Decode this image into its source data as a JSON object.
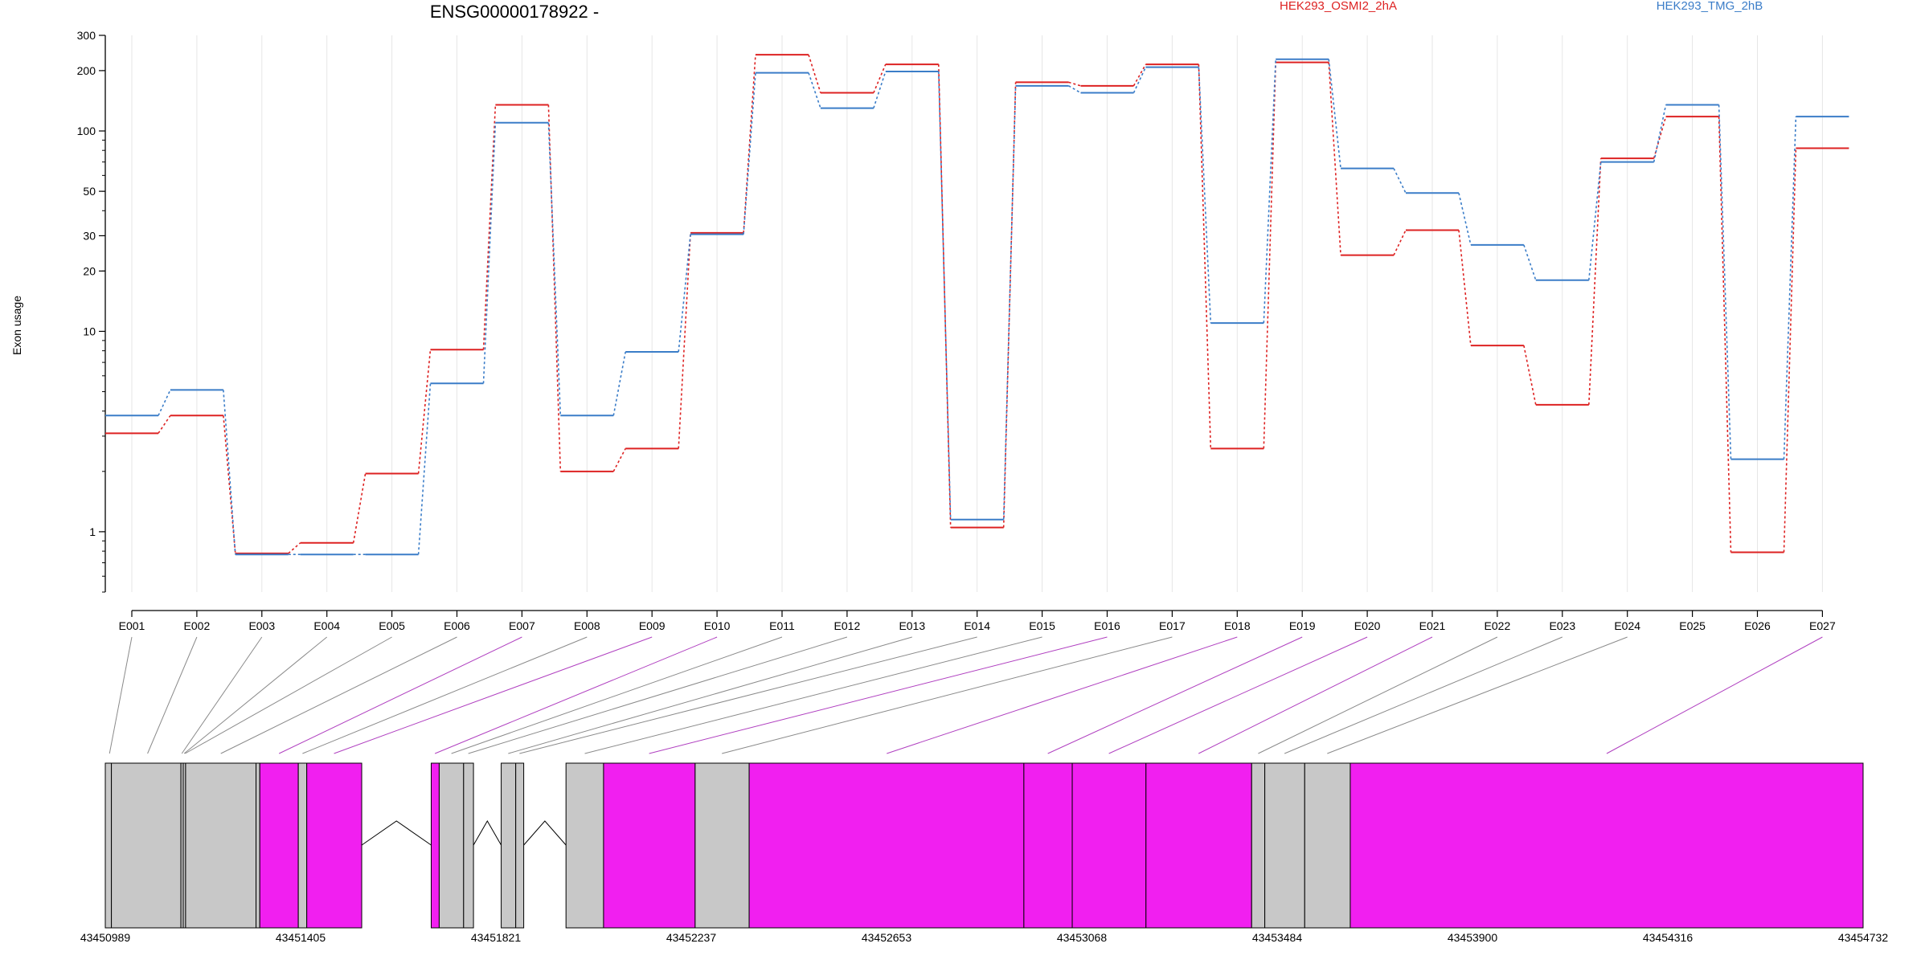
{
  "chart_data": {
    "type": "line",
    "title": "ENSG00000178922 -",
    "ylabel": "Exon usage",
    "xlabel": "",
    "yscale": "log",
    "ylim": [
      0.5,
      300
    ],
    "ytick_labels": [
      "300",
      "200",
      "100",
      "50",
      "30",
      "20",
      "10",
      "1"
    ],
    "ytick_values": [
      300,
      200,
      100,
      50,
      30,
      20,
      10,
      1
    ],
    "grid": "vertical",
    "legend_position": "top-right",
    "categories": [
      "E001",
      "E002",
      "E003",
      "E004",
      "E005",
      "E006",
      "E007",
      "E008",
      "E009",
      "E010",
      "E011",
      "E012",
      "E013",
      "E014",
      "E015",
      "E016",
      "E017",
      "E018",
      "E019",
      "E020",
      "E021",
      "E022",
      "E023",
      "E024",
      "E025",
      "E026",
      "E027"
    ],
    "series": [
      {
        "name": "HEK293_OSMI2_2hA",
        "color": "#dd2222",
        "values": [
          3.1,
          3.8,
          0.78,
          0.88,
          1.95,
          8.1,
          135,
          2.0,
          2.6,
          31,
          240,
          155,
          215,
          1.05,
          175,
          168,
          215,
          2.6,
          220,
          24,
          32,
          8.5,
          4.3,
          73,
          118,
          0.79,
          82
        ]
      },
      {
        "name": "HEK293_TMG_2hB",
        "color": "#3b7dc8",
        "values": [
          3.8,
          5.1,
          0.77,
          0.77,
          0.77,
          5.5,
          110,
          3.8,
          7.9,
          30.5,
          195,
          130,
          198,
          1.15,
          168,
          155,
          208,
          11,
          228,
          65,
          49,
          27,
          18,
          70,
          135,
          2.3,
          118
        ]
      }
    ],
    "gene_model": {
      "coordinate_labels": [
        "43450989",
        "43451405",
        "43451821",
        "43452237",
        "43452653",
        "43453068",
        "43453484",
        "43453900",
        "43454316",
        "43454732"
      ],
      "range": [
        43450989,
        43454732
      ],
      "exon_fill_colors": {
        "default": "#c8c8c8",
        "highlighted": "#f11ff0"
      },
      "segments": [
        {
          "start": 43450989,
          "end": 43451002,
          "highlighted": false
        },
        {
          "start": 43451002,
          "end": 43451150,
          "highlighted": false
        },
        {
          "start": 43451150,
          "end": 43451155,
          "highlighted": false
        },
        {
          "start": 43451155,
          "end": 43451160,
          "highlighted": false
        },
        {
          "start": 43451160,
          "end": 43451310,
          "highlighted": false
        },
        {
          "start": 43451310,
          "end": 43451318,
          "highlighted": false
        },
        {
          "start": 43451318,
          "end": 43451400,
          "highlighted": true
        },
        {
          "start": 43451400,
          "end": 43451418,
          "highlighted": false
        },
        {
          "start": 43451418,
          "end": 43451535,
          "highlighted": true
        },
        {
          "start": 43451683,
          "end": 43451700,
          "highlighted": true
        },
        {
          "start": 43451700,
          "end": 43451752,
          "highlighted": false
        },
        {
          "start": 43451752,
          "end": 43451773,
          "highlighted": false
        },
        {
          "start": 43451832,
          "end": 43451863,
          "highlighted": false
        },
        {
          "start": 43451863,
          "end": 43451880,
          "highlighted": false
        },
        {
          "start": 43451970,
          "end": 43452050,
          "highlighted": false
        },
        {
          "start": 43452050,
          "end": 43452245,
          "highlighted": true
        },
        {
          "start": 43452245,
          "end": 43452360,
          "highlighted": false
        },
        {
          "start": 43452360,
          "end": 43452945,
          "highlighted": true
        },
        {
          "start": 43452945,
          "end": 43453048,
          "highlighted": true
        },
        {
          "start": 43453048,
          "end": 43453205,
          "highlighted": true
        },
        {
          "start": 43453205,
          "end": 43453430,
          "highlighted": true
        },
        {
          "start": 43453430,
          "end": 43453458,
          "highlighted": false
        },
        {
          "start": 43453458,
          "end": 43453543,
          "highlighted": false
        },
        {
          "start": 43453543,
          "end": 43453640,
          "highlighted": false
        },
        {
          "start": 43453640,
          "end": 43454732,
          "highlighted": true
        }
      ],
      "introns": [
        {
          "start": 43451535,
          "end": 43451683
        },
        {
          "start": 43451773,
          "end": 43451832
        },
        {
          "start": 43451880,
          "end": 43451970
        }
      ],
      "exon_links": [
        {
          "exon": "E001",
          "position": 43450998,
          "highlighted": false
        },
        {
          "exon": "E002",
          "position": 43451079,
          "highlighted": false
        },
        {
          "exon": "E003",
          "position": 43451152,
          "highlighted": false
        },
        {
          "exon": "E004",
          "position": 43451157,
          "highlighted": false
        },
        {
          "exon": "E005",
          "position": 43451159,
          "highlighted": false
        },
        {
          "exon": "E006",
          "position": 43451235,
          "highlighted": false
        },
        {
          "exon": "E007",
          "position": 43451359,
          "highlighted": true
        },
        {
          "exon": "E008",
          "position": 43451409,
          "highlighted": false
        },
        {
          "exon": "E009",
          "position": 43451476,
          "highlighted": true
        },
        {
          "exon": "E010",
          "position": 43451691,
          "highlighted": true
        },
        {
          "exon": "E011",
          "position": 43451726,
          "highlighted": false
        },
        {
          "exon": "E012",
          "position": 43451762,
          "highlighted": false
        },
        {
          "exon": "E013",
          "position": 43451847,
          "highlighted": false
        },
        {
          "exon": "E014",
          "position": 43451871,
          "highlighted": false
        },
        {
          "exon": "E015",
          "position": 43452010,
          "highlighted": false
        },
        {
          "exon": "E016",
          "position": 43452147,
          "highlighted": true
        },
        {
          "exon": "E017",
          "position": 43452302,
          "highlighted": false
        },
        {
          "exon": "E018",
          "position": 43452653,
          "highlighted": true
        },
        {
          "exon": "E019",
          "position": 43452996,
          "highlighted": true
        },
        {
          "exon": "E020",
          "position": 43453126,
          "highlighted": true
        },
        {
          "exon": "E021",
          "position": 43453317,
          "highlighted": true
        },
        {
          "exon": "E022",
          "position": 43453444,
          "highlighted": false
        },
        {
          "exon": "E023",
          "position": 43453500,
          "highlighted": false
        },
        {
          "exon": "E024",
          "position": 43453591,
          "highlighted": false
        },
        {
          "exon": "E027",
          "position": 43454186,
          "highlighted": true
        }
      ]
    }
  }
}
